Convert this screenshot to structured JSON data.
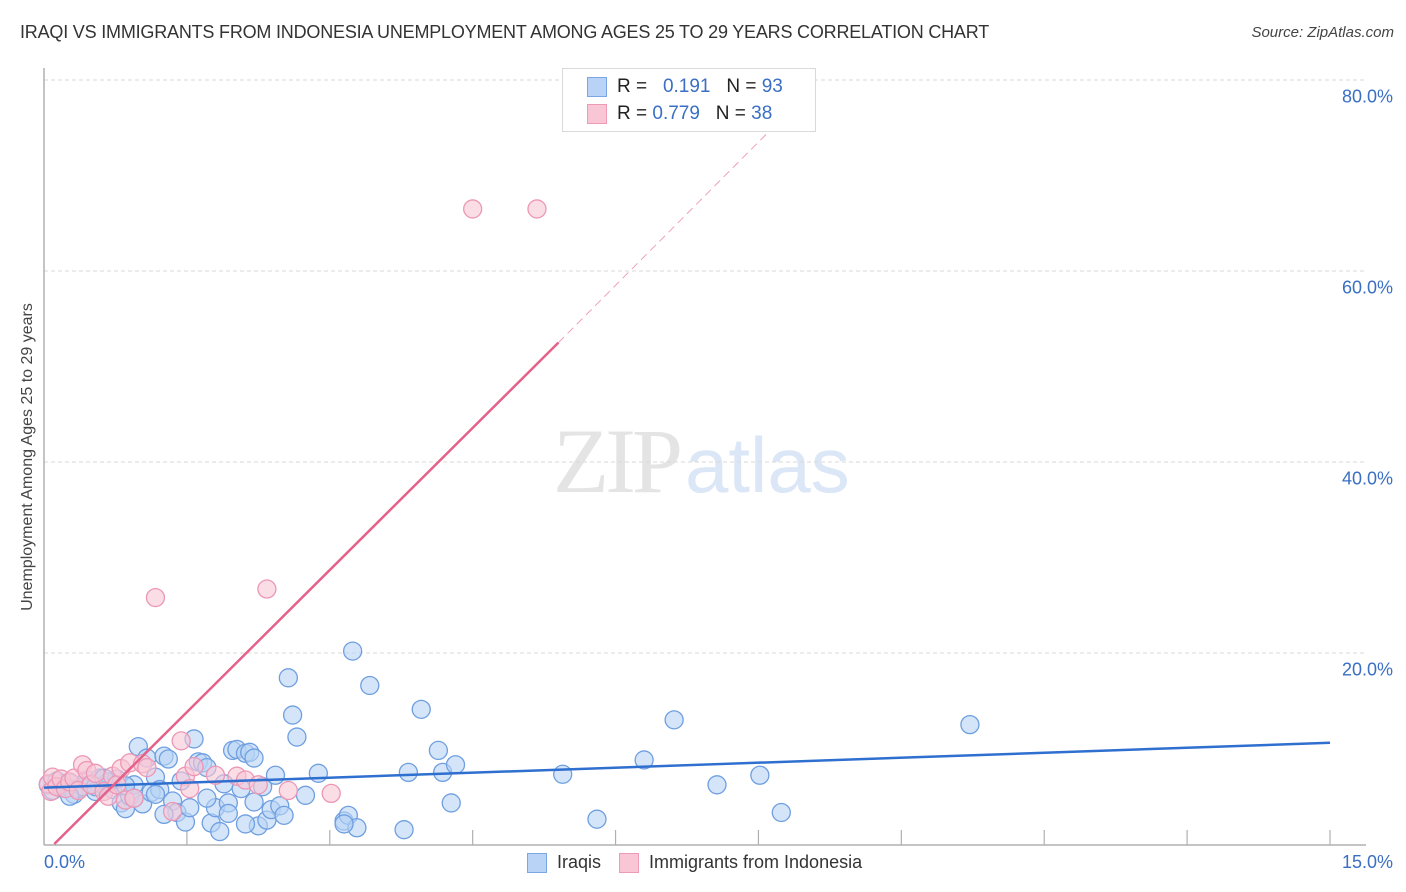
{
  "header": {
    "title": "IRAQI VS IMMIGRANTS FROM INDONESIA UNEMPLOYMENT AMONG AGES 25 TO 29 YEARS CORRELATION CHART",
    "source": "Source: ZipAtlas.com"
  },
  "legend": {
    "rows": [
      {
        "r_label": "R =",
        "r_value": "0.191",
        "n_label": "N =",
        "n_value": "93"
      },
      {
        "r_label": "R =",
        "r_value": "0.779",
        "n_label": "N =",
        "n_value": "38"
      }
    ],
    "bottom": [
      {
        "label": "Iraqis"
      },
      {
        "label": "Immigrants from Indonesia"
      }
    ]
  },
  "axes": {
    "ylabel": "Unemployment Among Ages 25 to 29 years",
    "yticks": [
      "80.0%",
      "60.0%",
      "40.0%",
      "20.0%"
    ],
    "xticks": [
      "0.0%",
      "15.0%"
    ]
  },
  "watermark": {
    "zip": "ZIP",
    "atlas": "atlas"
  },
  "colors": {
    "iraqis_fill": "#b8d3f5",
    "iraqis_stroke": "#6f9fe0",
    "iraqis_trend": "#2f6fcf",
    "indonesia_fill": "#f9c6d6",
    "indonesia_stroke": "#ec97b5",
    "indonesia_trend": "#e4628a",
    "tick_label": "#3a6fc4"
  },
  "chart_data": {
    "type": "scatter",
    "title": "IRAQI VS IMMIGRANTS FROM INDONESIA UNEMPLOYMENT AMONG AGES 25 TO 29 YEARS CORRELATION CHART",
    "xlabel": "",
    "ylabel": "Unemployment Among Ages 25 to 29 years",
    "xlim": [
      0,
      15
    ],
    "ylim": [
      0,
      80
    ],
    "x_unit": "%",
    "y_unit": "%",
    "grid": {
      "horizontal_dashed": [
        20,
        40,
        60,
        80
      ]
    },
    "legend_position": "top-center (stats) and bottom-center (series)",
    "series": [
      {
        "name": "Iraqis",
        "R": 0.191,
        "N": 93,
        "trend": {
          "x": [
            0,
            15
          ],
          "y": [
            5.9,
            10.6
          ]
        },
        "points": [
          [
            0.05,
            6.2
          ],
          [
            0.1,
            5.6
          ],
          [
            0.15,
            6.6
          ],
          [
            0.2,
            5.9
          ],
          [
            0.25,
            6.1
          ],
          [
            0.3,
            6.4
          ],
          [
            0.35,
            5.2
          ],
          [
            0.4,
            5.8
          ],
          [
            0.45,
            6.0
          ],
          [
            0.5,
            6.7
          ],
          [
            0.55,
            6.3
          ],
          [
            0.6,
            5.5
          ],
          [
            0.65,
            6.9
          ],
          [
            0.7,
            6.1
          ],
          [
            0.75,
            6.5
          ],
          [
            0.8,
            5.7
          ],
          [
            0.85,
            6.8
          ],
          [
            0.9,
            4.3
          ],
          [
            0.95,
            3.7
          ],
          [
            1.0,
            5.0
          ],
          [
            1.05,
            6.2
          ],
          [
            1.1,
            10.2
          ],
          [
            1.15,
            4.2
          ],
          [
            1.2,
            9.0
          ],
          [
            1.25,
            5.4
          ],
          [
            1.3,
            7.0
          ],
          [
            1.35,
            5.7
          ],
          [
            1.4,
            9.2
          ],
          [
            1.45,
            8.9
          ],
          [
            1.5,
            4.5
          ],
          [
            1.55,
            3.3
          ],
          [
            1.6,
            6.6
          ],
          [
            1.65,
            2.3
          ],
          [
            1.7,
            3.8
          ],
          [
            1.75,
            11.0
          ],
          [
            1.8,
            8.6
          ],
          [
            1.85,
            8.5
          ],
          [
            1.9,
            8.0
          ],
          [
            1.95,
            2.2
          ],
          [
            2.0,
            3.8
          ],
          [
            2.05,
            1.3
          ],
          [
            2.1,
            6.3
          ],
          [
            2.15,
            4.3
          ],
          [
            2.2,
            9.8
          ],
          [
            2.25,
            9.9
          ],
          [
            2.3,
            5.8
          ],
          [
            2.35,
            9.5
          ],
          [
            2.4,
            9.6
          ],
          [
            2.45,
            9.0
          ],
          [
            2.5,
            1.9
          ],
          [
            2.55,
            6.0
          ],
          [
            2.6,
            2.5
          ],
          [
            2.65,
            3.6
          ],
          [
            2.7,
            7.2
          ],
          [
            2.75,
            4.0
          ],
          [
            2.8,
            3.0
          ],
          [
            2.85,
            17.4
          ],
          [
            2.9,
            13.5
          ],
          [
            2.95,
            11.2
          ],
          [
            3.05,
            5.1
          ],
          [
            3.2,
            7.4
          ],
          [
            3.5,
            2.4
          ],
          [
            3.55,
            3.0
          ],
          [
            3.65,
            1.7
          ],
          [
            3.6,
            20.2
          ],
          [
            3.8,
            16.6
          ],
          [
            4.2,
            1.5
          ],
          [
            4.25,
            7.5
          ],
          [
            4.4,
            14.1
          ],
          [
            4.6,
            9.8
          ],
          [
            4.65,
            7.5
          ],
          [
            4.75,
            4.3
          ],
          [
            4.8,
            8.3
          ],
          [
            6.05,
            7.3
          ],
          [
            6.45,
            2.6
          ],
          [
            7.0,
            8.8
          ],
          [
            7.35,
            13.0
          ],
          [
            7.85,
            6.2
          ],
          [
            8.35,
            7.2
          ],
          [
            8.6,
            3.3
          ],
          [
            10.8,
            12.5
          ],
          [
            0.3,
            5.0
          ],
          [
            0.6,
            6.0
          ],
          [
            0.7,
            6.9
          ],
          [
            0.95,
            6.1
          ],
          [
            1.05,
            4.8
          ],
          [
            1.3,
            5.2
          ],
          [
            1.4,
            3.1
          ],
          [
            1.9,
            4.8
          ],
          [
            2.15,
            3.2
          ],
          [
            2.35,
            2.1
          ],
          [
            3.5,
            2.1
          ],
          [
            2.45,
            4.4
          ]
        ]
      },
      {
        "name": "Immigrants from Indonesia",
        "R": 0.779,
        "N": 38,
        "trend": {
          "x": [
            0.12,
            6.0
          ],
          "y": [
            0.0,
            52.5
          ],
          "dashed_extension": {
            "x": [
              6.0,
              9.0
            ],
            "y": [
              52.5,
              79.5
            ]
          }
        },
        "points": [
          [
            0.05,
            6.3
          ],
          [
            0.08,
            5.5
          ],
          [
            0.1,
            7.0
          ],
          [
            0.15,
            6.0
          ],
          [
            0.2,
            6.8
          ],
          [
            0.25,
            5.8
          ],
          [
            0.3,
            6.5
          ],
          [
            0.35,
            6.9
          ],
          [
            0.4,
            5.6
          ],
          [
            0.45,
            8.3
          ],
          [
            0.5,
            7.7
          ],
          [
            0.55,
            6.2
          ],
          [
            0.6,
            7.4
          ],
          [
            0.7,
            5.5
          ],
          [
            0.75,
            5.0
          ],
          [
            0.8,
            7.1
          ],
          [
            0.85,
            6.2
          ],
          [
            0.9,
            7.9
          ],
          [
            0.95,
            4.6
          ],
          [
            1.0,
            8.5
          ],
          [
            1.05,
            4.8
          ],
          [
            1.15,
            8.4
          ],
          [
            1.2,
            8.0
          ],
          [
            1.3,
            25.8
          ],
          [
            1.6,
            10.8
          ],
          [
            1.65,
            7.1
          ],
          [
            1.7,
            5.8
          ],
          [
            1.75,
            8.1
          ],
          [
            2.0,
            7.2
          ],
          [
            2.25,
            7.1
          ],
          [
            2.35,
            6.7
          ],
          [
            2.5,
            6.2
          ],
          [
            2.6,
            26.7
          ],
          [
            2.85,
            5.6
          ],
          [
            3.35,
            5.3
          ],
          [
            5.0,
            66.5
          ],
          [
            5.75,
            66.5
          ],
          [
            1.5,
            3.4
          ]
        ]
      }
    ]
  }
}
